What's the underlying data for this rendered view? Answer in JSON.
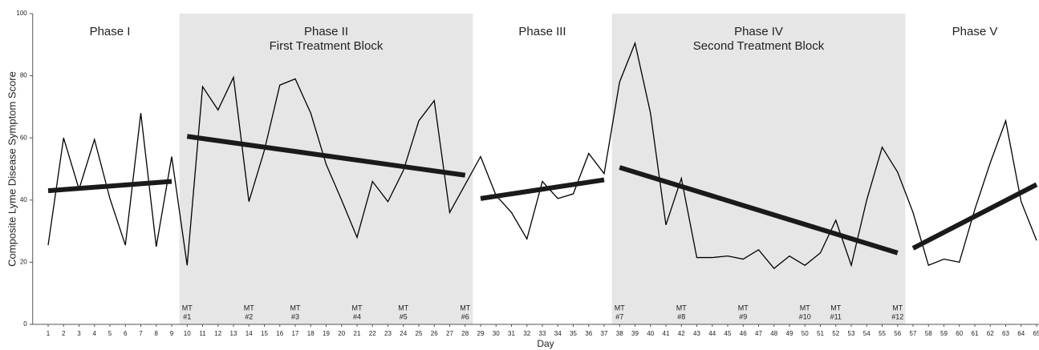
{
  "chart_data": {
    "type": "line",
    "y_label": "Composite Lyme Disease Symptom Score",
    "x_label": "Day",
    "x": [
      1,
      2,
      3,
      4,
      5,
      6,
      7,
      8,
      9,
      10,
      11,
      12,
      13,
      14,
      15,
      16,
      17,
      18,
      19,
      20,
      21,
      22,
      23,
      24,
      25,
      26,
      27,
      28,
      29,
      30,
      31,
      32,
      33,
      34,
      35,
      36,
      37,
      38,
      39,
      40,
      41,
      42,
      43,
      44,
      45,
      46,
      47,
      48,
      49,
      50,
      51,
      52,
      53,
      54,
      55,
      56,
      57,
      58,
      59,
      60,
      61,
      62,
      63,
      64,
      65
    ],
    "series": [
      {
        "color": "#000000",
        "values": [
          25.5,
          60,
          43.5,
          59.5,
          40.5,
          25.5,
          68,
          25,
          54,
          19,
          76.5,
          69,
          79.5,
          39.5,
          56,
          77,
          79,
          68,
          51.5,
          40,
          28,
          46,
          39.5,
          49.5,
          65.5,
          72,
          36,
          45,
          54,
          41.5,
          36,
          27.5,
          46,
          40.5,
          42,
          55,
          48.5,
          78,
          90.5,
          68,
          32,
          47,
          21.5,
          21.5,
          22,
          21,
          24,
          18,
          22,
          19,
          23,
          33.5,
          19,
          40,
          57,
          49,
          36,
          19,
          21,
          20,
          37,
          52,
          65.5,
          39.5,
          27
        ]
      }
    ],
    "trends": [
      {
        "x": [
          1,
          9
        ],
        "values": [
          43,
          46
        ]
      },
      {
        "x": [
          10,
          28
        ],
        "values": [
          60.5,
          48
        ]
      },
      {
        "x": [
          29,
          37
        ],
        "values": [
          40.5,
          46.5
        ]
      },
      {
        "x": [
          38,
          56
        ],
        "values": [
          50.5,
          23
        ]
      },
      {
        "x": [
          57,
          65
        ],
        "values": [
          24.5,
          45
        ]
      }
    ],
    "trend_color": "#1a1a1a",
    "phases": [
      {
        "label": "Phase I",
        "start": 0.5,
        "end": 9.5,
        "shaded": false
      },
      {
        "label": "Phase II",
        "sublabel": "First Treatment Block",
        "start": 9.5,
        "end": 28.5,
        "shaded": true
      },
      {
        "label": "Phase III",
        "start": 28.5,
        "end": 37.5,
        "shaded": false
      },
      {
        "label": "Phase IV",
        "sublabel": "Second Treatment Block",
        "start": 37.5,
        "end": 56.5,
        "shaded": true
      },
      {
        "label": "Phase V",
        "start": 56.5,
        "end": 65.5,
        "shaded": false
      }
    ],
    "shade_color": "#e6e6e6",
    "annotations": [
      {
        "day": 10,
        "top": "MT",
        "bottom": "#1"
      },
      {
        "day": 14,
        "top": "MT",
        "bottom": "#2"
      },
      {
        "day": 17,
        "top": "MT",
        "bottom": "#3"
      },
      {
        "day": 21,
        "top": "MT",
        "bottom": "#4"
      },
      {
        "day": 24,
        "top": "MT",
        "bottom": "#5"
      },
      {
        "day": 28,
        "top": "MT",
        "bottom": "#6"
      },
      {
        "day": 38,
        "top": "MT",
        "bottom": "#7"
      },
      {
        "day": 42,
        "top": "MT",
        "bottom": "#8"
      },
      {
        "day": 46,
        "top": "MT",
        "bottom": "#9"
      },
      {
        "day": 50,
        "top": "MT",
        "bottom": "#10"
      },
      {
        "day": 52,
        "top": "MT",
        "bottom": "#11"
      },
      {
        "day": 56,
        "top": "MT",
        "bottom": "#12"
      }
    ],
    "xlim": [
      0,
      66
    ],
    "ylim": [
      0,
      100
    ],
    "yticks": [
      0,
      20,
      40,
      60,
      80,
      100
    ],
    "xticks": [
      1,
      2,
      3,
      4,
      5,
      6,
      7,
      8,
      9,
      10,
      11,
      12,
      13,
      14,
      15,
      16,
      17,
      18,
      19,
      20,
      21,
      22,
      23,
      24,
      25,
      26,
      27,
      28,
      29,
      30,
      31,
      32,
      33,
      34,
      35,
      36,
      37,
      38,
      39,
      40,
      41,
      42,
      43,
      44,
      45,
      46,
      47,
      48,
      49,
      50,
      51,
      52,
      53,
      54,
      55,
      56,
      57,
      58,
      59,
      60,
      61,
      62,
      63,
      64,
      65
    ]
  }
}
